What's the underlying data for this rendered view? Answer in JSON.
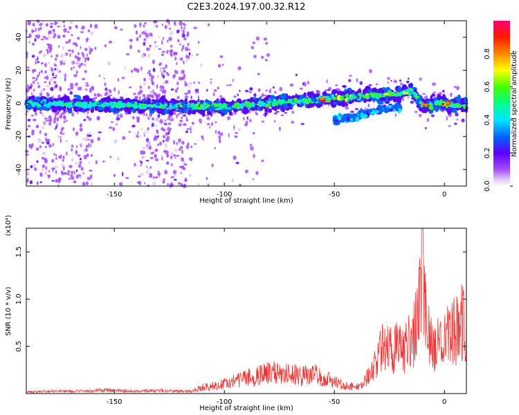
{
  "title": "C2E3.2024.197.00.32.R12",
  "chart_data": [
    {
      "type": "heatmap",
      "xlabel": "Height of straight line (km)",
      "ylabel": "Frequency (Hz)",
      "xlim": [
        -190,
        10
      ],
      "ylim": [
        -50,
        50
      ],
      "xticks": [
        -150,
        -100,
        -50,
        0
      ],
      "yticks": [
        -40,
        -20,
        0,
        20,
        40
      ],
      "colorbar": {
        "label": "Normalized spectral amplitude",
        "range": [
          0,
          1
        ],
        "ticks": [
          0.0,
          0.2,
          0.4,
          0.6,
          0.8
        ],
        "tick_labels": [
          "0.0",
          "0.2",
          "0.4",
          "0.6",
          "0.8"
        ]
      },
      "features": {
        "main_band_frequency_hz": [
          [
            -190,
            0
          ],
          [
            -150,
            -1
          ],
          [
            -100,
            -2
          ],
          [
            -60,
            2
          ],
          [
            -40,
            4
          ],
          [
            -20,
            6
          ],
          [
            -15,
            8
          ],
          [
            -10,
            -1
          ],
          [
            0,
            0
          ],
          [
            10,
            -2
          ]
        ],
        "secondary_band_frequency_hz": [
          [
            -50,
            -10
          ],
          [
            -40,
            -8
          ],
          [
            -30,
            -4
          ],
          [
            -20,
            -2
          ]
        ],
        "peak_amplitude_height_km": [
          0,
          -8,
          -55
        ],
        "broadband_noise_height_ranges_km": [
          [
            -190,
            -160
          ],
          [
            -140,
            -115
          ]
        ]
      }
    },
    {
      "type": "line",
      "xlabel": "Height of straight line (km)",
      "ylabel": "SNR (10 * v/v)",
      "y_multiplier": "(x10⁴)",
      "xlim": [
        -190,
        10
      ],
      "ylim": [
        0,
        1.75
      ],
      "xticks": [
        -150,
        -100,
        -50,
        0
      ],
      "yticks": [
        0.5,
        1.0,
        1.5
      ],
      "ytick_labels": [
        "0.5",
        "1.0",
        "1.5"
      ],
      "series": [
        {
          "color": "#ee3333",
          "x": [
            -190,
            -180,
            -170,
            -160,
            -155,
            -150,
            -140,
            -130,
            -120,
            -115,
            -112,
            -110,
            -105,
            -100,
            -95,
            -90,
            -85,
            -80,
            -75,
            -70,
            -65,
            -60,
            -55,
            -50,
            -45,
            -40,
            -37,
            -35,
            -32,
            -30,
            -28,
            -25,
            -22,
            -20,
            -18,
            -15,
            -12,
            -10,
            -8,
            -5,
            -2,
            0,
            2,
            5,
            7,
            8,
            10
          ],
          "y": [
            0.02,
            0.03,
            0.03,
            0.03,
            0.05,
            0.04,
            0.03,
            0.04,
            0.03,
            0.03,
            0.06,
            0.08,
            0.1,
            0.12,
            0.16,
            0.2,
            0.22,
            0.26,
            0.28,
            0.25,
            0.22,
            0.26,
            0.2,
            0.15,
            0.1,
            0.08,
            0.1,
            0.25,
            0.35,
            0.5,
            0.7,
            0.55,
            0.6,
            0.75,
            0.55,
            0.7,
            0.9,
            1.75,
            0.8,
            0.55,
            0.65,
            0.75,
            0.72,
            0.8,
            0.85,
            0.9,
            0.85
          ]
        }
      ]
    }
  ]
}
